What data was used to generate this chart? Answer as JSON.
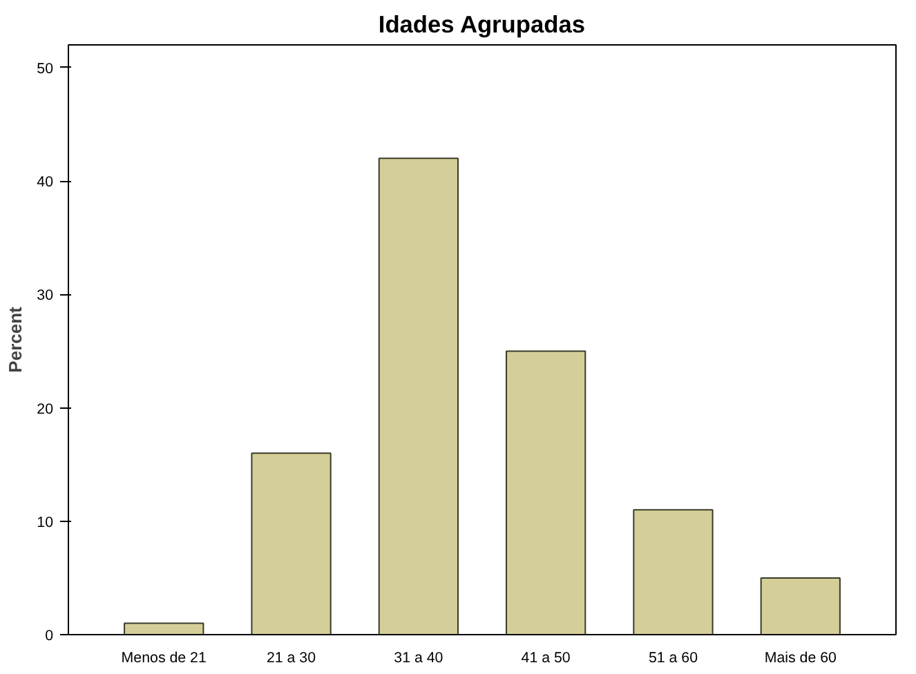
{
  "chart_data": {
    "type": "bar",
    "title": "Idades Agrupadas",
    "ylabel": "Percent",
    "categories": [
      "Menos de 21",
      "21 a 30",
      "31 a 40",
      "41 a 50",
      "51 a 60",
      "Mais de 60"
    ],
    "values": [
      1,
      16,
      42,
      25,
      11,
      5
    ],
    "color": "#d4cf98",
    "ylim": [
      0,
      52
    ],
    "yticks": [
      0,
      10,
      20,
      30,
      40,
      50
    ],
    "grid": false
  }
}
